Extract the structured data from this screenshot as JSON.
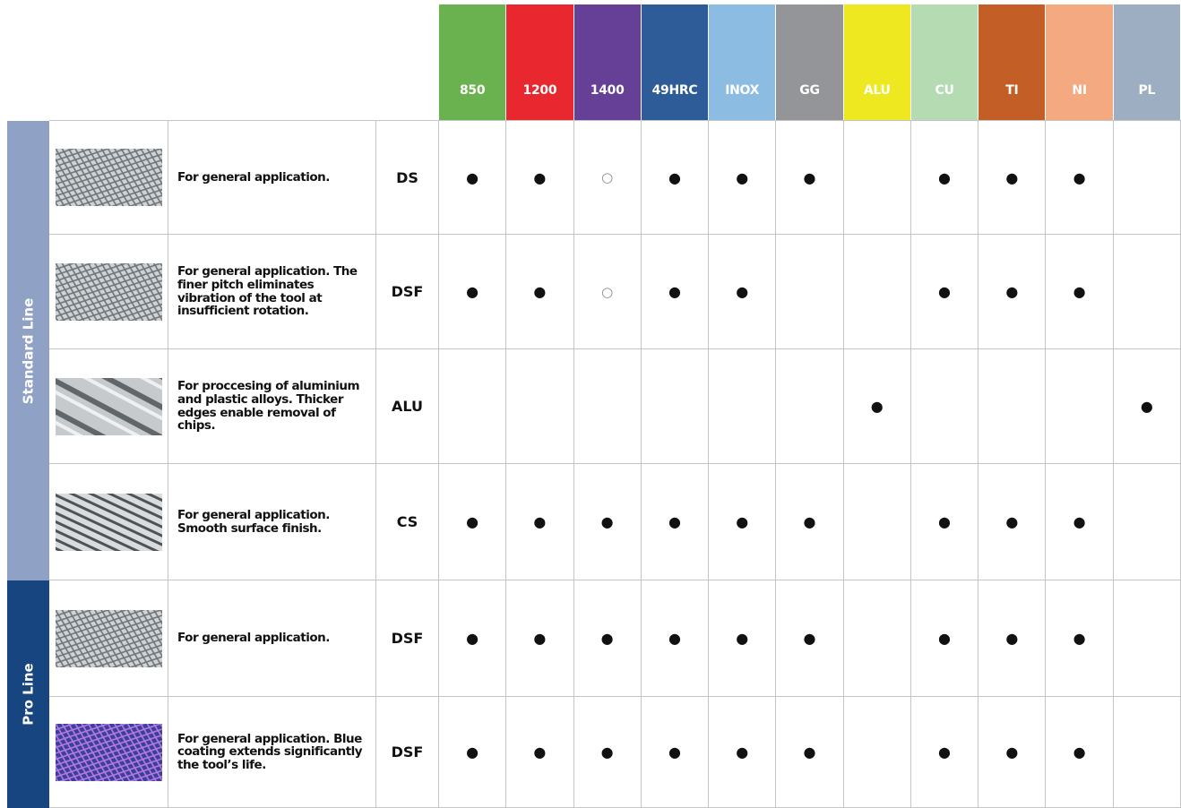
{
  "header": {
    "materials": [
      {
        "label": "850",
        "color": "#6ab150"
      },
      {
        "label": "1200",
        "color": "#e8282e"
      },
      {
        "label": "1400",
        "color": "#663f96"
      },
      {
        "label": "49HRC",
        "color": "#2d5c98"
      },
      {
        "label": "INOX",
        "color": "#8dbce3"
      },
      {
        "label": "GG",
        "color": "#939598"
      },
      {
        "label": "ALU",
        "color": "#ede81f"
      },
      {
        "label": "CU",
        "color": "#b5dbb3"
      },
      {
        "label": "TI",
        "color": "#c25e26"
      },
      {
        "label": "NI",
        "color": "#f4a981"
      },
      {
        "label": "PL",
        "color": "#9daec2"
      }
    ]
  },
  "groups": [
    {
      "label": "Standard Line",
      "color": "#8fa2c5",
      "rows": [
        {
          "description": "For general application.",
          "code": "DS",
          "marks": [
            "●",
            "●",
            "○",
            "●",
            "●",
            "●",
            null,
            "●",
            "●",
            "●",
            null
          ]
        },
        {
          "description": "For general application. The finer pitch eliminates vibration of the tool at insufficient rotation.",
          "code": "DSF",
          "marks": [
            "●",
            "●",
            "○",
            "●",
            "●",
            null,
            null,
            "●",
            "●",
            "●",
            null
          ]
        },
        {
          "description": "For proccesing of aluminium and plastic alloys. Thicker edges enable removal of chips.",
          "code": "ALU",
          "marks": [
            null,
            null,
            null,
            null,
            null,
            null,
            "●",
            null,
            null,
            null,
            "●"
          ]
        },
        {
          "description": "For general application. Smooth surface finish.",
          "code": "CS",
          "marks": [
            "●",
            "●",
            "●",
            "●",
            "●",
            "●",
            null,
            "●",
            "●",
            "●",
            null
          ]
        }
      ]
    },
    {
      "label": "Pro Line",
      "color": "#17457f",
      "rows": [
        {
          "description": "For general application.",
          "code": "DSF",
          "marks": [
            "●",
            "●",
            "●",
            "●",
            "●",
            "●",
            null,
            "●",
            "●",
            "●",
            null
          ]
        },
        {
          "description": "For general application. Blue coating extends significantly the tool’s life.",
          "code": "DSF",
          "marks": [
            "●",
            "●",
            "●",
            "●",
            "●",
            "●",
            null,
            "●",
            "●",
            "●",
            null
          ]
        }
      ]
    }
  ]
}
